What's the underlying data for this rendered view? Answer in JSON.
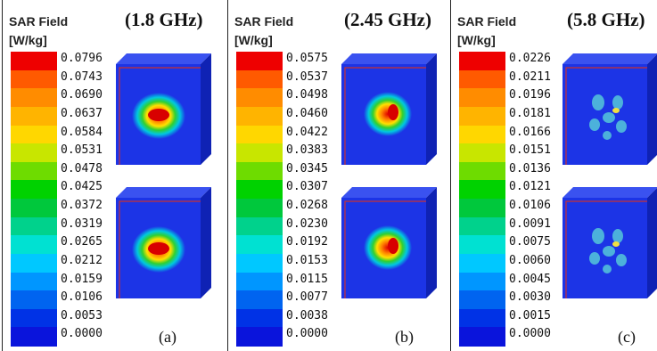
{
  "panels": [
    {
      "legend_title_1": "SAR Field",
      "legend_title_2": "[W/kg]",
      "frequency": "(1.8 GHz)",
      "sublabel": "(a)",
      "ticks": [
        "0.0796",
        "0.0743",
        "0.0690",
        "0.0637",
        "0.0584",
        "0.0531",
        "0.0478",
        "0.0425",
        "0.0372",
        "0.0319",
        "0.0265",
        "0.0212",
        "0.0159",
        "0.0106",
        "0.0053",
        "0.0000"
      ],
      "pattern": "central-hotspot"
    },
    {
      "legend_title_1": "SAR Field",
      "legend_title_2": "[W/kg]",
      "frequency": "(2.45 GHz)",
      "sublabel": "(b)",
      "ticks": [
        "0.0575",
        "0.0537",
        "0.0498",
        "0.0460",
        "0.0422",
        "0.0383",
        "0.0345",
        "0.0307",
        "0.0268",
        "0.0230",
        "0.0192",
        "0.0153",
        "0.0115",
        "0.0077",
        "0.0038",
        "0.0000"
      ],
      "pattern": "offset-hotspot"
    },
    {
      "legend_title_1": "SAR Field",
      "legend_title_2": "[W/kg]",
      "frequency": "(5.8 GHz)",
      "sublabel": "(c)",
      "ticks": [
        "0.0226",
        "0.0211",
        "0.0196",
        "0.0181",
        "0.0166",
        "0.0151",
        "0.0136",
        "0.0121",
        "0.0106",
        "0.0091",
        "0.0075",
        "0.0060",
        "0.0045",
        "0.0030",
        "0.0015",
        "0.0000"
      ],
      "pattern": "scattered-spots"
    }
  ],
  "colors": {
    "scale": [
      "#ee0000",
      "#ff5a00",
      "#ff8c00",
      "#ffb400",
      "#ffd700",
      "#c8e600",
      "#6edc00",
      "#00d200",
      "#00c83c",
      "#00d28c",
      "#00e1d2",
      "#00c8ff",
      "#0096ff",
      "#0064f0",
      "#0032e6",
      "#0a14dc"
    ],
    "model_face": "#1c34e6",
    "model_side": "#0f22b4",
    "model_top": "#3a52f0",
    "edge_line": "#c83232"
  }
}
